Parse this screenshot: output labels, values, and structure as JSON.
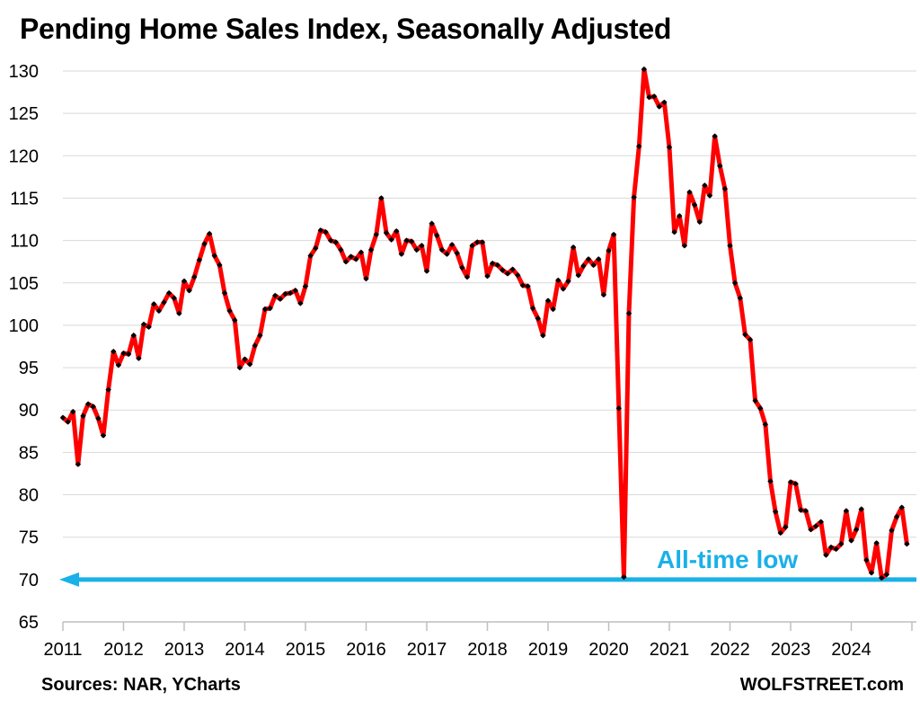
{
  "title": "Pending Home Sales Index, Seasonally Adjusted",
  "source": "Sources: NAR, YCharts",
  "brand": "WOLFSTREET.com",
  "colors": {
    "line": "#ff0000",
    "marker": "#000000",
    "annotation": "#1ab0e8",
    "grid": "#d9d9d9"
  },
  "chart_data": {
    "type": "line",
    "title": "Pending Home Sales Index, Seasonally Adjusted",
    "xlabel": "",
    "ylabel": "",
    "ylim": [
      65,
      130
    ],
    "y_ticks": [
      65,
      70,
      75,
      80,
      85,
      90,
      95,
      100,
      105,
      110,
      115,
      120,
      125,
      130
    ],
    "x_ticks": [
      "2011",
      "2012",
      "2013",
      "2014",
      "2015",
      "2016",
      "2017",
      "2018",
      "2019",
      "2020",
      "2021",
      "2022",
      "2023",
      "2024"
    ],
    "x_start_year": 2011,
    "grid": "horizontal",
    "legend": "none",
    "series": [
      {
        "values": [
          89.1,
          88.6,
          89.8,
          83.6,
          89.3,
          90.7,
          90.4,
          89.0,
          87.0,
          92.4,
          96.9,
          95.3,
          96.7,
          96.6,
          98.8,
          96.1,
          100.1,
          99.8,
          102.5,
          101.7,
          102.7,
          103.8,
          103.2,
          101.4,
          105.2,
          104.1,
          105.7,
          107.7,
          109.6,
          110.8,
          108.2,
          107.1,
          103.8,
          101.7,
          100.6,
          95.0,
          96.0,
          95.4,
          97.6,
          98.8,
          101.9,
          102.0,
          103.5,
          103.1,
          103.7,
          103.8,
          104.1,
          102.6,
          104.6,
          108.2,
          109.1,
          111.2,
          111.0,
          110.0,
          109.8,
          108.9,
          107.5,
          108.1,
          107.8,
          108.6,
          105.5,
          108.9,
          110.7,
          115.0,
          110.9,
          110.1,
          111.1,
          108.4,
          110.0,
          109.9,
          108.9,
          109.4,
          106.4,
          112.0,
          110.6,
          108.9,
          108.4,
          109.5,
          108.5,
          106.8,
          105.7,
          109.4,
          109.8,
          109.8,
          105.8,
          107.3,
          107.1,
          106.5,
          106.1,
          106.6,
          105.9,
          104.7,
          104.6,
          102.0,
          100.8,
          98.8,
          102.9,
          101.9,
          105.3,
          104.3,
          105.2,
          109.2,
          105.9,
          107.0,
          107.8,
          107.1,
          107.8,
          103.6,
          108.8,
          110.7,
          90.2,
          70.3,
          101.4,
          115.1,
          121.1,
          130.2,
          126.9,
          127.0,
          125.8,
          126.3,
          121.0,
          111.0,
          112.9,
          109.4,
          115.7,
          114.2,
          112.2,
          116.5,
          115.3,
          122.3,
          118.8,
          116.1,
          109.4,
          105.0,
          103.2,
          98.9,
          98.3,
          91.1,
          90.2,
          88.3,
          81.6,
          78.0,
          75.5,
          76.2,
          81.5,
          81.3,
          78.2,
          78.1,
          75.9,
          76.3,
          76.8,
          72.9,
          73.8,
          73.6,
          74.2,
          78.1,
          74.6,
          75.9,
          78.3,
          72.3,
          70.8,
          74.3,
          70.2,
          70.6,
          75.8,
          77.4,
          78.5,
          74.2
        ]
      }
    ],
    "annotations": [
      {
        "text": "All-time low",
        "value": 70
      }
    ]
  }
}
